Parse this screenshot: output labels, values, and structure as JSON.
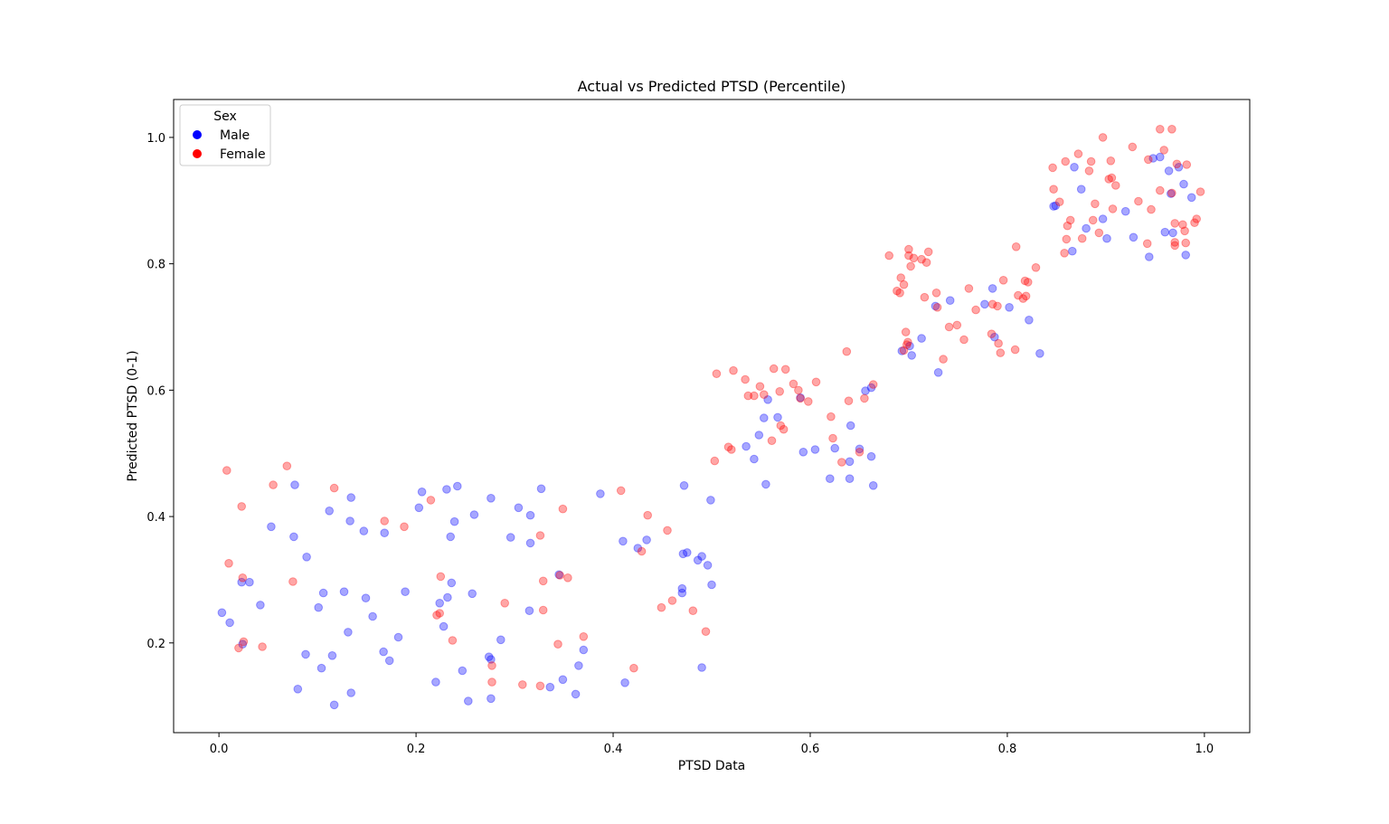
{
  "chart_data": {
    "type": "scatter",
    "title": "Actual vs Predicted PTSD (Percentile)",
    "xlabel": "PTSD Data",
    "ylabel": "Predicted PTSD (0-1)",
    "xlim": [
      -0.046,
      1.046
    ],
    "ylim": [
      0.058,
      1.06
    ],
    "xticks": [
      "0.0",
      "0.2",
      "0.4",
      "0.6",
      "0.8",
      "1.0"
    ],
    "xtick_values": [
      0.0,
      0.2,
      0.4,
      0.6,
      0.8,
      1.0
    ],
    "yticks": [
      "0.2",
      "0.4",
      "0.6",
      "0.8",
      "1.0"
    ],
    "ytick_values": [
      0.2,
      0.4,
      0.6,
      0.8,
      1.0
    ],
    "grid": false,
    "legend": {
      "title": "Sex",
      "placement": "top-left",
      "entries": [
        {
          "label": "Male",
          "color": "#0000ff"
        },
        {
          "label": "Female",
          "color": "#ff0000"
        }
      ]
    },
    "marker_alpha": 0.35,
    "series": [
      {
        "name": "Male",
        "color": "#0000ff",
        "points": [
          [
            0.003,
            0.248
          ],
          [
            0.011,
            0.232
          ],
          [
            0.023,
            0.296
          ],
          [
            0.031,
            0.296
          ],
          [
            0.024,
            0.198
          ],
          [
            0.042,
            0.26
          ],
          [
            0.053,
            0.384
          ],
          [
            0.076,
            0.368
          ],
          [
            0.077,
            0.45
          ],
          [
            0.08,
            0.127
          ],
          [
            0.088,
            0.182
          ],
          [
            0.089,
            0.336
          ],
          [
            0.101,
            0.256
          ],
          [
            0.104,
            0.16
          ],
          [
            0.106,
            0.279
          ],
          [
            0.112,
            0.409
          ],
          [
            0.115,
            0.18
          ],
          [
            0.117,
            0.102
          ],
          [
            0.127,
            0.281
          ],
          [
            0.131,
            0.217
          ],
          [
            0.133,
            0.393
          ],
          [
            0.134,
            0.43
          ],
          [
            0.134,
            0.121
          ],
          [
            0.147,
            0.377
          ],
          [
            0.149,
            0.271
          ],
          [
            0.156,
            0.242
          ],
          [
            0.167,
            0.186
          ],
          [
            0.168,
            0.374
          ],
          [
            0.173,
            0.172
          ],
          [
            0.182,
            0.209
          ],
          [
            0.189,
            0.281
          ],
          [
            0.203,
            0.414
          ],
          [
            0.206,
            0.439
          ],
          [
            0.22,
            0.138
          ],
          [
            0.224,
            0.263
          ],
          [
            0.228,
            0.226
          ],
          [
            0.231,
            0.443
          ],
          [
            0.232,
            0.272
          ],
          [
            0.235,
            0.368
          ],
          [
            0.236,
            0.295
          ],
          [
            0.239,
            0.392
          ],
          [
            0.242,
            0.448
          ],
          [
            0.247,
            0.156
          ],
          [
            0.253,
            0.108
          ],
          [
            0.257,
            0.278
          ],
          [
            0.259,
            0.403
          ],
          [
            0.274,
            0.178
          ],
          [
            0.276,
            0.112
          ],
          [
            0.276,
            0.429
          ],
          [
            0.276,
            0.174
          ],
          [
            0.286,
            0.205
          ],
          [
            0.296,
            0.367
          ],
          [
            0.304,
            0.414
          ],
          [
            0.315,
            0.251
          ],
          [
            0.316,
            0.402
          ],
          [
            0.316,
            0.358
          ],
          [
            0.327,
            0.444
          ],
          [
            0.336,
            0.13
          ],
          [
            0.345,
            0.308
          ],
          [
            0.349,
            0.142
          ],
          [
            0.362,
            0.119
          ],
          [
            0.365,
            0.164
          ],
          [
            0.37,
            0.189
          ],
          [
            0.387,
            0.436
          ],
          [
            0.41,
            0.361
          ],
          [
            0.412,
            0.137
          ],
          [
            0.425,
            0.35
          ],
          [
            0.434,
            0.363
          ],
          [
            0.47,
            0.286
          ],
          [
            0.471,
            0.341
          ],
          [
            0.472,
            0.449
          ],
          [
            0.475,
            0.343
          ],
          [
            0.486,
            0.331
          ],
          [
            0.49,
            0.161
          ],
          [
            0.49,
            0.337
          ],
          [
            0.496,
            0.323
          ],
          [
            0.499,
            0.426
          ],
          [
            0.5,
            0.292
          ],
          [
            0.47,
            0.279
          ],
          [
            0.535,
            0.511
          ],
          [
            0.543,
            0.491
          ],
          [
            0.548,
            0.529
          ],
          [
            0.553,
            0.556
          ],
          [
            0.555,
            0.451
          ],
          [
            0.557,
            0.585
          ],
          [
            0.567,
            0.557
          ],
          [
            0.59,
            0.588
          ],
          [
            0.593,
            0.502
          ],
          [
            0.605,
            0.506
          ],
          [
            0.62,
            0.46
          ],
          [
            0.625,
            0.508
          ],
          [
            0.64,
            0.46
          ],
          [
            0.641,
            0.544
          ],
          [
            0.65,
            0.507
          ],
          [
            0.656,
            0.599
          ],
          [
            0.662,
            0.495
          ],
          [
            0.664,
            0.449
          ],
          [
            0.64,
            0.487
          ],
          [
            0.662,
            0.604
          ],
          [
            0.693,
            0.662
          ],
          [
            0.701,
            0.67
          ],
          [
            0.703,
            0.655
          ],
          [
            0.713,
            0.682
          ],
          [
            0.727,
            0.733
          ],
          [
            0.73,
            0.628
          ],
          [
            0.742,
            0.742
          ],
          [
            0.777,
            0.736
          ],
          [
            0.785,
            0.761
          ],
          [
            0.787,
            0.684
          ],
          [
            0.802,
            0.731
          ],
          [
            0.822,
            0.711
          ],
          [
            0.833,
            0.658
          ],
          [
            0.847,
            0.891
          ],
          [
            0.849,
            0.892
          ],
          [
            0.868,
            0.953
          ],
          [
            0.875,
            0.918
          ],
          [
            0.88,
            0.856
          ],
          [
            0.866,
            0.82
          ],
          [
            0.897,
            0.871
          ],
          [
            0.901,
            0.84
          ],
          [
            0.92,
            0.883
          ],
          [
            0.928,
            0.842
          ],
          [
            0.944,
            0.811
          ],
          [
            0.948,
            0.967
          ],
          [
            0.955,
            0.969
          ],
          [
            0.96,
            0.85
          ],
          [
            0.964,
            0.947
          ],
          [
            0.966,
            0.911
          ],
          [
            0.968,
            0.849
          ],
          [
            0.974,
            0.953
          ],
          [
            0.979,
            0.926
          ],
          [
            0.981,
            0.814
          ],
          [
            0.987,
            0.905
          ]
        ]
      },
      {
        "name": "Female",
        "color": "#ff0000",
        "points": [
          [
            0.008,
            0.473
          ],
          [
            0.01,
            0.326
          ],
          [
            0.02,
            0.192
          ],
          [
            0.023,
            0.416
          ],
          [
            0.024,
            0.303
          ],
          [
            0.025,
            0.202
          ],
          [
            0.044,
            0.194
          ],
          [
            0.055,
            0.45
          ],
          [
            0.069,
            0.48
          ],
          [
            0.075,
            0.297
          ],
          [
            0.117,
            0.445
          ],
          [
            0.168,
            0.393
          ],
          [
            0.188,
            0.384
          ],
          [
            0.215,
            0.426
          ],
          [
            0.221,
            0.244
          ],
          [
            0.224,
            0.247
          ],
          [
            0.225,
            0.305
          ],
          [
            0.237,
            0.204
          ],
          [
            0.277,
            0.164
          ],
          [
            0.277,
            0.138
          ],
          [
            0.29,
            0.263
          ],
          [
            0.308,
            0.134
          ],
          [
            0.326,
            0.132
          ],
          [
            0.326,
            0.37
          ],
          [
            0.329,
            0.298
          ],
          [
            0.329,
            0.252
          ],
          [
            0.344,
            0.198
          ],
          [
            0.346,
            0.307
          ],
          [
            0.349,
            0.412
          ],
          [
            0.354,
            0.303
          ],
          [
            0.37,
            0.21
          ],
          [
            0.408,
            0.441
          ],
          [
            0.421,
            0.16
          ],
          [
            0.429,
            0.345
          ],
          [
            0.435,
            0.402
          ],
          [
            0.449,
            0.256
          ],
          [
            0.455,
            0.378
          ],
          [
            0.46,
            0.267
          ],
          [
            0.481,
            0.251
          ],
          [
            0.494,
            0.218
          ],
          [
            0.503,
            0.488
          ],
          [
            0.505,
            0.626
          ],
          [
            0.517,
            0.51
          ],
          [
            0.52,
            0.506
          ],
          [
            0.522,
            0.631
          ],
          [
            0.534,
            0.617
          ],
          [
            0.537,
            0.591
          ],
          [
            0.543,
            0.591
          ],
          [
            0.549,
            0.606
          ],
          [
            0.553,
            0.593
          ],
          [
            0.561,
            0.52
          ],
          [
            0.563,
            0.634
          ],
          [
            0.569,
            0.598
          ],
          [
            0.57,
            0.544
          ],
          [
            0.573,
            0.538
          ],
          [
            0.575,
            0.633
          ],
          [
            0.583,
            0.61
          ],
          [
            0.588,
            0.6
          ],
          [
            0.59,
            0.587
          ],
          [
            0.598,
            0.582
          ],
          [
            0.606,
            0.613
          ],
          [
            0.621,
            0.558
          ],
          [
            0.623,
            0.524
          ],
          [
            0.632,
            0.486
          ],
          [
            0.637,
            0.661
          ],
          [
            0.639,
            0.583
          ],
          [
            0.65,
            0.502
          ],
          [
            0.655,
            0.587
          ],
          [
            0.664,
            0.609
          ],
          [
            0.68,
            0.813
          ],
          [
            0.688,
            0.757
          ],
          [
            0.691,
            0.754
          ],
          [
            0.692,
            0.778
          ],
          [
            0.695,
            0.767
          ],
          [
            0.695,
            0.663
          ],
          [
            0.697,
            0.692
          ],
          [
            0.698,
            0.672
          ],
          [
            0.699,
            0.676
          ],
          [
            0.7,
            0.823
          ],
          [
            0.7,
            0.813
          ],
          [
            0.702,
            0.796
          ],
          [
            0.705,
            0.809
          ],
          [
            0.713,
            0.807
          ],
          [
            0.716,
            0.747
          ],
          [
            0.718,
            0.802
          ],
          [
            0.72,
            0.819
          ],
          [
            0.728,
            0.754
          ],
          [
            0.729,
            0.731
          ],
          [
            0.735,
            0.649
          ],
          [
            0.741,
            0.7
          ],
          [
            0.749,
            0.703
          ],
          [
            0.756,
            0.68
          ],
          [
            0.761,
            0.761
          ],
          [
            0.768,
            0.727
          ],
          [
            0.784,
            0.689
          ],
          [
            0.785,
            0.736
          ],
          [
            0.79,
            0.733
          ],
          [
            0.791,
            0.674
          ],
          [
            0.793,
            0.659
          ],
          [
            0.796,
            0.774
          ],
          [
            0.808,
            0.664
          ],
          [
            0.809,
            0.827
          ],
          [
            0.811,
            0.75
          ],
          [
            0.816,
            0.745
          ],
          [
            0.818,
            0.773
          ],
          [
            0.819,
            0.749
          ],
          [
            0.821,
            0.771
          ],
          [
            0.829,
            0.794
          ],
          [
            0.846,
            0.952
          ],
          [
            0.847,
            0.918
          ],
          [
            0.853,
            0.898
          ],
          [
            0.858,
            0.817
          ],
          [
            0.859,
            0.962
          ],
          [
            0.86,
            0.839
          ],
          [
            0.861,
            0.86
          ],
          [
            0.864,
            0.869
          ],
          [
            0.872,
            0.974
          ],
          [
            0.876,
            0.84
          ],
          [
            0.883,
            0.947
          ],
          [
            0.885,
            0.962
          ],
          [
            0.887,
            0.869
          ],
          [
            0.889,
            0.895
          ],
          [
            0.893,
            0.849
          ],
          [
            0.897,
            1.0
          ],
          [
            0.903,
            0.934
          ],
          [
            0.905,
            0.963
          ],
          [
            0.906,
            0.936
          ],
          [
            0.907,
            0.887
          ],
          [
            0.91,
            0.924
          ],
          [
            0.927,
            0.985
          ],
          [
            0.933,
            0.899
          ],
          [
            0.942,
            0.832
          ],
          [
            0.943,
            0.965
          ],
          [
            0.946,
            0.886
          ],
          [
            0.955,
            1.013
          ],
          [
            0.955,
            0.916
          ],
          [
            0.959,
            0.98
          ],
          [
            0.967,
            1.013
          ],
          [
            0.967,
            0.912
          ],
          [
            0.97,
            0.834
          ],
          [
            0.97,
            0.864
          ],
          [
            0.97,
            0.829
          ],
          [
            0.972,
            0.958
          ],
          [
            0.978,
            0.862
          ],
          [
            0.98,
            0.852
          ],
          [
            0.981,
            0.833
          ],
          [
            0.982,
            0.957
          ],
          [
            0.99,
            0.865
          ],
          [
            0.992,
            0.871
          ],
          [
            0.996,
            0.914
          ]
        ]
      }
    ]
  }
}
